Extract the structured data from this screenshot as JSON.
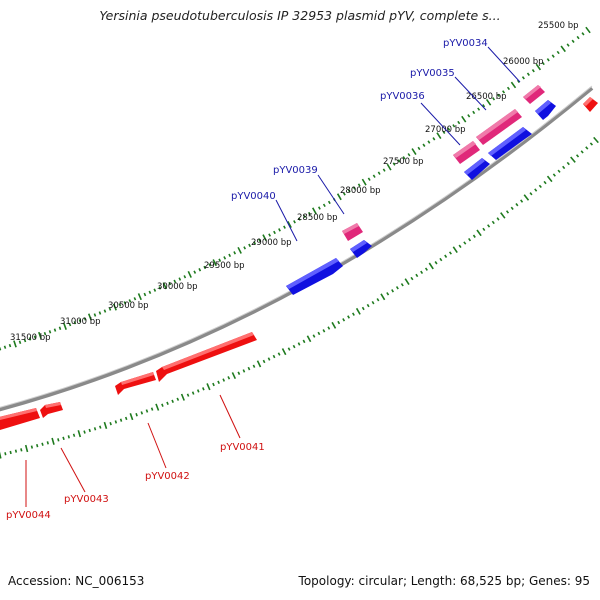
{
  "title": "Yersinia pseudotuberculosis IP 32953 plasmid pYV, complete s...",
  "footer": {
    "accession": "Accession: NC_006153",
    "summary": "Topology: circular; Length: 68,525 bp; Genes: 95"
  },
  "colors": {
    "forward_label": "#1a1aa8",
    "reverse_label": "#d01010",
    "backbone": "#8a8a8a",
    "tick": "#1e7a1e",
    "gene_pink": "#e0287a",
    "gene_blue": "#1010e0",
    "gene_red": "#ee1010"
  },
  "scale_labels": [
    "25500 bp",
    "26000 bp",
    "26500 bp",
    "27000 bp",
    "27500 bp",
    "28000 bp",
    "28500 bp",
    "29000 bp",
    "29500 bp",
    "30000 bp",
    "30500 bp",
    "31000 bp",
    "31500 bp"
  ],
  "gene_labels": [
    {
      "text": "pYV0034",
      "strand": "forward"
    },
    {
      "text": "pYV0035",
      "strand": "forward"
    },
    {
      "text": "pYV0036",
      "strand": "forward"
    },
    {
      "text": "pYV0039",
      "strand": "forward"
    },
    {
      "text": "pYV0040",
      "strand": "forward"
    },
    {
      "text": "pYV0041",
      "strand": "reverse"
    },
    {
      "text": "pYV0042",
      "strand": "reverse"
    },
    {
      "text": "pYV0043",
      "strand": "reverse"
    },
    {
      "text": "pYV0044",
      "strand": "reverse"
    }
  ]
}
